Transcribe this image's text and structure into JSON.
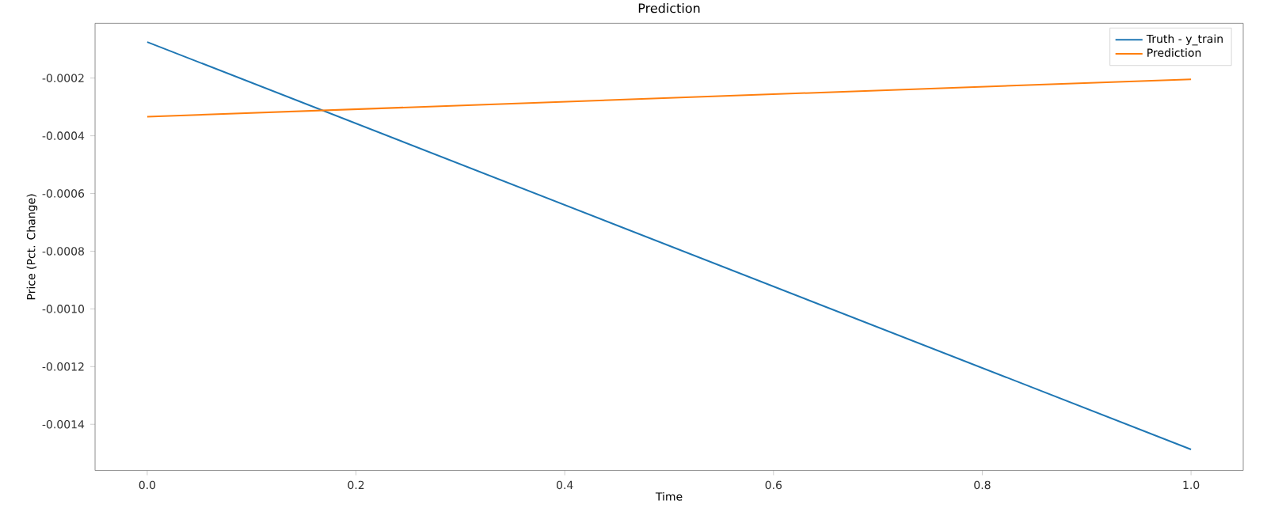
{
  "chart_data": {
    "type": "line",
    "title": "Prediction",
    "xlabel": "Time",
    "ylabel": "Price (Pct. Change)",
    "x": [
      0.0,
      1.0
    ],
    "series": [
      {
        "name": "Truth - y_train",
        "color": "#1f77b4",
        "values": [
          -7.5e-05,
          -0.001487
        ]
      },
      {
        "name": "Prediction",
        "color": "#ff7f0e",
        "values": [
          -0.000334,
          -0.000204
        ]
      }
    ],
    "xlim": [
      -0.05,
      1.05
    ],
    "ylim": [
      -0.00156,
      -1e-05
    ],
    "xticks": [
      {
        "value": 0,
        "label": "0.0"
      },
      0.2,
      0.4,
      0.6,
      0.8,
      {
        "value": 1,
        "label": "1.0"
      }
    ],
    "yticks": [
      -0.0014,
      -0.0012,
      {
        "value": -0.001,
        "label": "-0.0010"
      },
      -0.0008,
      -0.0006,
      -0.0004,
      -0.0002
    ],
    "grid": false,
    "legend": "top right",
    "marker": "none",
    "line_style": "solid"
  }
}
